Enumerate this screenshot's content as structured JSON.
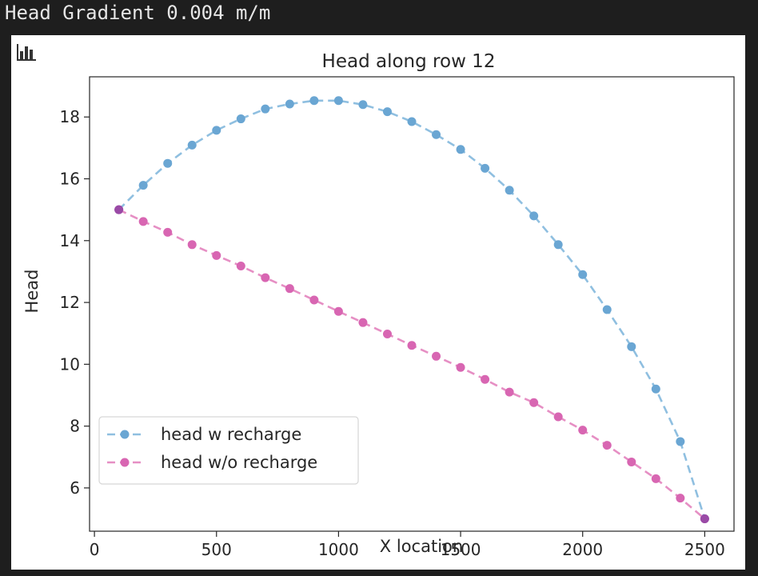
{
  "output": {
    "text": "Head Gradient 0.004 m/m"
  },
  "toolbar": {
    "icon": "bar-chart-icon"
  },
  "chart_data": {
    "type": "line",
    "title": "Head along row 12",
    "xlabel": "X location",
    "ylabel": "Head",
    "xlim": [
      -20,
      2620
    ],
    "ylim": [
      4.6,
      19.3
    ],
    "xticks": [
      0,
      500,
      1000,
      1500,
      2000,
      2500
    ],
    "yticks": [
      6,
      8,
      10,
      12,
      14,
      16,
      18
    ],
    "grid": false,
    "legend": "lower-left",
    "x": [
      100,
      200,
      300,
      400,
      500,
      600,
      700,
      800,
      900,
      1000,
      1100,
      1200,
      1300,
      1400,
      1500,
      1600,
      1700,
      1800,
      1900,
      2000,
      2100,
      2200,
      2300,
      2400,
      2500
    ],
    "series": [
      {
        "name": "head w recharge",
        "line_color": "#8fbfe0",
        "marker_color": "#6aa6d3",
        "values": [
          15.0,
          15.79,
          16.5,
          17.09,
          17.57,
          17.94,
          18.26,
          18.42,
          18.53,
          18.53,
          18.4,
          18.17,
          17.85,
          17.43,
          16.95,
          16.34,
          15.63,
          14.8,
          13.87,
          12.9,
          11.77,
          10.57,
          9.2,
          7.5,
          5.0
        ]
      },
      {
        "name": "head w/o recharge",
        "line_color": "#e68fc4",
        "marker_color": "#d866b2",
        "values": [
          15.0,
          14.62,
          14.27,
          13.87,
          13.52,
          13.18,
          12.8,
          12.45,
          12.08,
          11.71,
          11.35,
          10.98,
          10.61,
          10.26,
          9.9,
          9.51,
          9.1,
          8.76,
          8.3,
          7.87,
          7.38,
          6.84,
          6.3,
          5.67,
          5.0
        ]
      }
    ],
    "endpoint_color": "#9a4aa6"
  }
}
